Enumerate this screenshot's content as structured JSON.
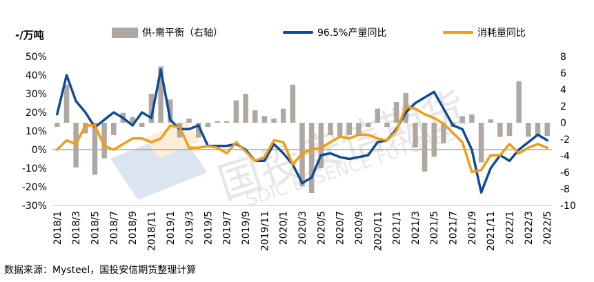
{
  "unit_label": "-/万吨",
  "source": "数据来源：Mysteel，国投安信期货整理计算",
  "legend": {
    "bar": "供-需平衡（右轴）",
    "blue": "96.5%产量同比",
    "orange": "消耗量同比"
  },
  "colors": {
    "bar": "#afa8a1",
    "blue": "#0d4a9b",
    "orange": "#f39c12"
  },
  "chart_data": {
    "type": "bar+line",
    "categories": [
      "2018/1",
      "2018/2",
      "2018/3",
      "2018/4",
      "2018/5",
      "2018/6",
      "2018/7",
      "2018/8",
      "2018/9",
      "2018/10",
      "2018/11",
      "2018/12",
      "2019/1",
      "2019/2",
      "2019/3",
      "2019/4",
      "2019/5",
      "2019/6",
      "2019/7",
      "2019/8",
      "2019/9",
      "2019/10",
      "2019/11",
      "2019/12",
      "2020/1",
      "2020/2",
      "2020/3",
      "2020/4",
      "2020/5",
      "2020/6",
      "2020/7",
      "2020/8",
      "2020/9",
      "2020/10",
      "2020/11",
      "2020/12",
      "2021/1",
      "2021/2",
      "2021/3",
      "2021/4",
      "2021/5",
      "2021/6",
      "2021/7",
      "2021/8",
      "2021/9",
      "2021/10",
      "2021/11",
      "2021/12",
      "2022/1",
      "2022/2",
      "2022/3",
      "2022/4",
      "2022/5"
    ],
    "tick_labels": [
      "2018/1",
      "2018/3",
      "2018/5",
      "2018/7",
      "2018/9",
      "2018/11",
      "2019/1",
      "2019/3",
      "2019/5",
      "2019/7",
      "2019/9",
      "2019/11",
      "2020/1",
      "2020/3",
      "2020/5",
      "2020/7",
      "2020/9",
      "2020/11",
      "2021/1",
      "2021/3",
      "2021/5",
      "2021/7",
      "2021/9",
      "2021/11",
      "2022/1",
      "2022/3",
      "2022/5"
    ],
    "y_left": {
      "min": -0.3,
      "max": 0.5,
      "step": 0.1,
      "ticks": [
        "-30%",
        "-20%",
        "-10%",
        "0%",
        "10%",
        "20%",
        "30%",
        "40%",
        "50%"
      ]
    },
    "y_right": {
      "min": -10,
      "max": 8,
      "step": 2,
      "ticks": [
        "-10",
        "-8",
        "-6",
        "-4",
        "-2",
        "0",
        "2",
        "4",
        "6",
        "8"
      ]
    },
    "series": [
      {
        "name": "供-需平衡（右轴）",
        "kind": "bar",
        "axis": "right",
        "values": [
          -0.5,
          4.6,
          -5.4,
          -1.3,
          -6.3,
          -4.3,
          -1.5,
          1.2,
          0.7,
          -0.5,
          3.5,
          6.8,
          2.8,
          -1.8,
          0.5,
          -1.8,
          -0.5,
          0.2,
          0.2,
          2.7,
          3.5,
          1.5,
          0.8,
          0.5,
          1.7,
          4.6,
          -7.7,
          -8.5,
          -5.5,
          -1.5,
          -1.6,
          -1.5,
          -1.5,
          -0.5,
          1.7,
          -0.5,
          2.5,
          3.6,
          -3.0,
          -5.9,
          -4.1,
          -2.5,
          -0.5,
          0.8,
          1.0,
          -4.8,
          0.4,
          -1.7,
          -1.6,
          5.0,
          -1.7,
          -1.6,
          -1.6
        ]
      },
      {
        "name": "96.5%产量同比",
        "kind": "line",
        "axis": "left",
        "values": [
          0.19,
          0.4,
          0.26,
          0.2,
          0.12,
          0.16,
          0.2,
          0.17,
          0.13,
          0.2,
          0.17,
          0.43,
          0.16,
          0.11,
          0.11,
          0.13,
          0.02,
          0.02,
          0.02,
          0.03,
          0.0,
          -0.06,
          -0.06,
          0.03,
          -0.02,
          -0.08,
          -0.18,
          -0.15,
          -0.03,
          -0.02,
          -0.04,
          -0.05,
          -0.04,
          -0.03,
          0.04,
          0.05,
          0.11,
          0.2,
          0.25,
          0.28,
          0.31,
          0.22,
          0.13,
          0.11,
          0.0,
          -0.23,
          -0.1,
          -0.03,
          -0.06,
          0.0,
          0.04,
          0.08,
          0.05
        ]
      },
      {
        "name": "消耗量同比",
        "kind": "line",
        "axis": "left",
        "values": [
          0.0,
          0.05,
          0.03,
          0.13,
          0.13,
          0.02,
          0.0,
          0.03,
          0.06,
          0.06,
          0.04,
          0.06,
          0.13,
          0.12,
          0.01,
          0.01,
          0.02,
          0.01,
          -0.02,
          0.04,
          -0.01,
          -0.06,
          -0.04,
          0.05,
          0.04,
          -0.08,
          -0.02,
          0.0,
          0.01,
          0.04,
          0.07,
          0.06,
          0.08,
          0.08,
          0.06,
          0.05,
          0.1,
          0.23,
          0.22,
          0.19,
          0.17,
          0.14,
          0.09,
          0.04,
          -0.12,
          -0.11,
          -0.03,
          -0.03,
          0.03,
          -0.02,
          0.01,
          0.03,
          0.01
        ]
      }
    ]
  }
}
